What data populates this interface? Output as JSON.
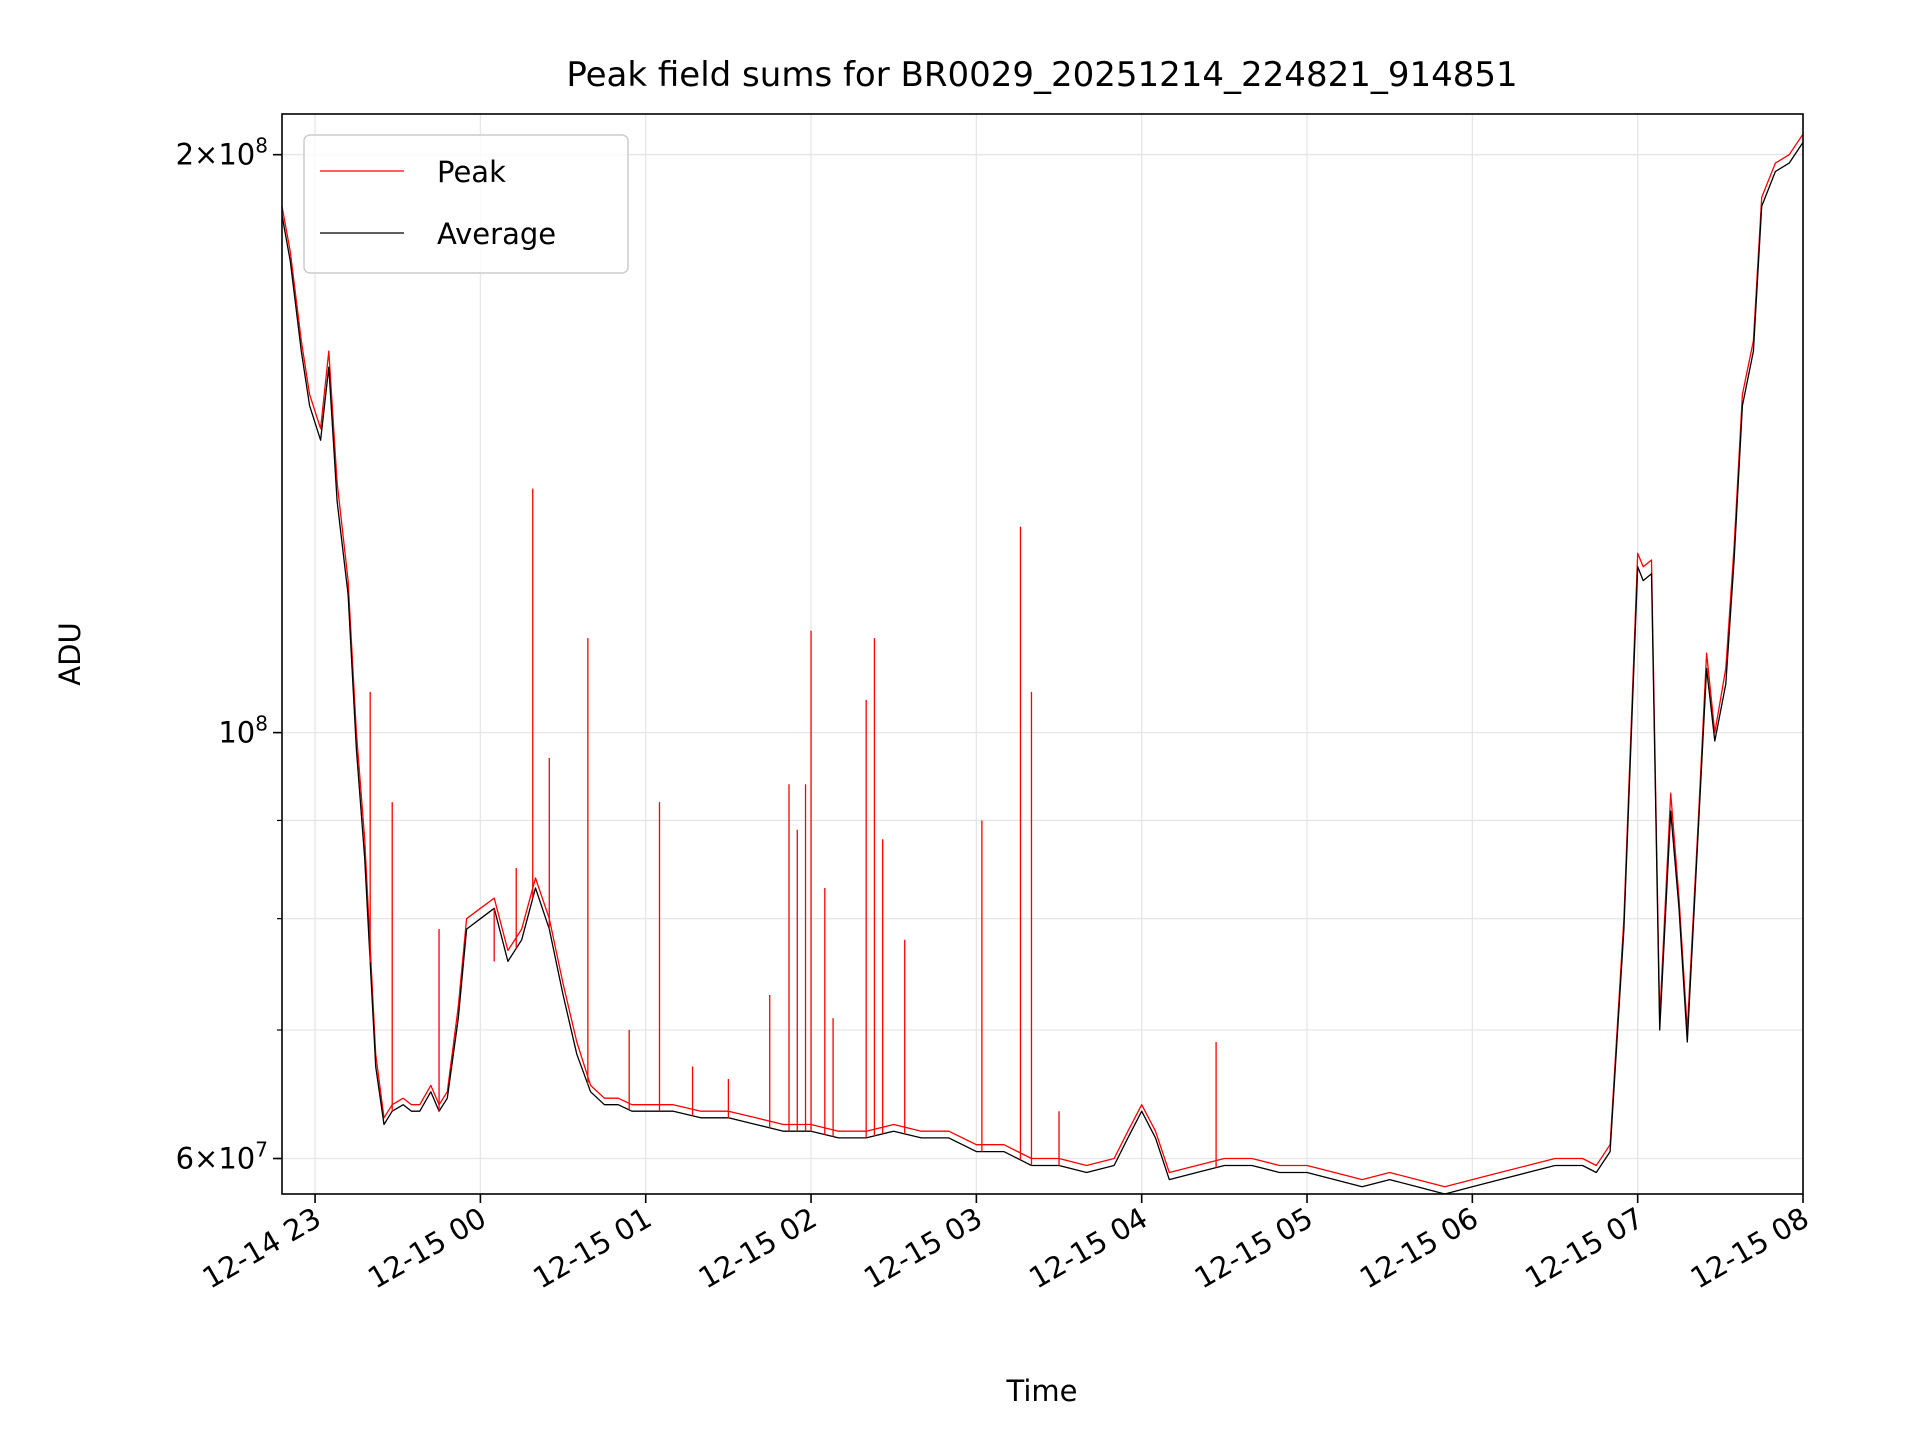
{
  "chart_data": {
    "type": "line",
    "title": "Peak field sums for BR0029_20251214_224821_914851",
    "xlabel": "Time",
    "ylabel": "ADU",
    "yscale": "log",
    "ylim": [
      57500000,
      210000000
    ],
    "xlim": [
      "2025-12-14 22:48",
      "2025-12-15 08:00"
    ],
    "y_major_ticks": [
      {
        "value": 60000000,
        "mantissa": "6",
        "exponent": "7"
      },
      {
        "value": 100000000,
        "mantissa": "",
        "exponent": "8"
      },
      {
        "value": 200000000,
        "mantissa": "2",
        "exponent": "8"
      }
    ],
    "y_minor_ticks": [
      60000000,
      70000000,
      80000000,
      90000000,
      100000000,
      200000000
    ],
    "x_ticks": [
      {
        "time": "2025-12-14 23:00",
        "label": "12-14 23"
      },
      {
        "time": "2025-12-15 00:00",
        "label": "12-15 00"
      },
      {
        "time": "2025-12-15 01:00",
        "label": "12-15 01"
      },
      {
        "time": "2025-12-15 02:00",
        "label": "12-15 02"
      },
      {
        "time": "2025-12-15 03:00",
        "label": "12-15 03"
      },
      {
        "time": "2025-12-15 04:00",
        "label": "12-15 04"
      },
      {
        "time": "2025-12-15 05:00",
        "label": "12-15 05"
      },
      {
        "time": "2025-12-15 06:00",
        "label": "12-15 06"
      },
      {
        "time": "2025-12-15 07:00",
        "label": "12-15 07"
      },
      {
        "time": "2025-12-15 08:00",
        "label": "12-15 08"
      }
    ],
    "grid": true,
    "legend": {
      "placement": "upper-left"
    },
    "series": [
      {
        "name": "Peak",
        "color": "#ff0000",
        "x": [
          "2025-12-14 22:48",
          "2025-12-14 22:51",
          "2025-12-14 22:55",
          "2025-12-14 22:58",
          "2025-12-14 23:02",
          "2025-12-14 23:05",
          "2025-12-14 23:08",
          "2025-12-14 23:12",
          "2025-12-14 23:15",
          "2025-12-14 23:18",
          "2025-12-14 23:22",
          "2025-12-14 23:25",
          "2025-12-14 23:28",
          "2025-12-14 23:32",
          "2025-12-14 23:35",
          "2025-12-14 23:38",
          "2025-12-14 23:42",
          "2025-12-14 23:45",
          "2025-12-14 23:48",
          "2025-12-14 23:52",
          "2025-12-14 23:55",
          "2025-12-15 00:00",
          "2025-12-15 00:05",
          "2025-12-15 00:10",
          "2025-12-15 00:15",
          "2025-12-15 00:20",
          "2025-12-15 00:25",
          "2025-12-15 00:30",
          "2025-12-15 00:35",
          "2025-12-15 00:40",
          "2025-12-15 00:45",
          "2025-12-15 00:50",
          "2025-12-15 00:55",
          "2025-12-15 01:00",
          "2025-12-15 01:10",
          "2025-12-15 01:20",
          "2025-12-15 01:30",
          "2025-12-15 01:40",
          "2025-12-15 01:50",
          "2025-12-15 02:00",
          "2025-12-15 02:10",
          "2025-12-15 02:20",
          "2025-12-15 02:30",
          "2025-12-15 02:40",
          "2025-12-15 02:50",
          "2025-12-15 03:00",
          "2025-12-15 03:10",
          "2025-12-15 03:20",
          "2025-12-15 03:30",
          "2025-12-15 03:40",
          "2025-12-15 03:50",
          "2025-12-15 03:55",
          "2025-12-15 04:00",
          "2025-12-15 04:05",
          "2025-12-15 04:10",
          "2025-12-15 04:20",
          "2025-12-15 04:30",
          "2025-12-15 04:40",
          "2025-12-15 04:50",
          "2025-12-15 05:00",
          "2025-12-15 05:10",
          "2025-12-15 05:20",
          "2025-12-15 05:30",
          "2025-12-15 05:40",
          "2025-12-15 05:50",
          "2025-12-15 06:00",
          "2025-12-15 06:10",
          "2025-12-15 06:20",
          "2025-12-15 06:30",
          "2025-12-15 06:40",
          "2025-12-15 06:45",
          "2025-12-15 06:50",
          "2025-12-15 06:55",
          "2025-12-15 07:00",
          "2025-12-15 07:02",
          "2025-12-15 07:05",
          "2025-12-15 07:08",
          "2025-12-15 07:12",
          "2025-12-15 07:15",
          "2025-12-15 07:18",
          "2025-12-15 07:22",
          "2025-12-15 07:25",
          "2025-12-15 07:28",
          "2025-12-15 07:32",
          "2025-12-15 07:35",
          "2025-12-15 07:38",
          "2025-12-15 07:42",
          "2025-12-15 07:45",
          "2025-12-15 07:50",
          "2025-12-15 07:55",
          "2025-12-15 08:00"
        ],
        "y": [
          188000000,
          178000000,
          160000000,
          150000000,
          144000000,
          158000000,
          135000000,
          120000000,
          100000000,
          88000000,
          68000000,
          63000000,
          64000000,
          64500000,
          64000000,
          64000000,
          65500000,
          64000000,
          65000000,
          72000000,
          80000000,
          81000000,
          82000000,
          77000000,
          79000000,
          84000000,
          80000000,
          74000000,
          69000000,
          65500000,
          64500000,
          64500000,
          64000000,
          64000000,
          64000000,
          63500000,
          63500000,
          63000000,
          62500000,
          62500000,
          62000000,
          62000000,
          62500000,
          62000000,
          62000000,
          61000000,
          61000000,
          60000000,
          60000000,
          59500000,
          60000000,
          62000000,
          64000000,
          62000000,
          59000000,
          59500000,
          60000000,
          60000000,
          59500000,
          59500000,
          59000000,
          58500000,
          59000000,
          58500000,
          58000000,
          58500000,
          59000000,
          59500000,
          60000000,
          60000000,
          59500000,
          61000000,
          80000000,
          124000000,
          122000000,
          123000000,
          71000000,
          93000000,
          82000000,
          70000000,
          90000000,
          110000000,
          100000000,
          108000000,
          125000000,
          150000000,
          160000000,
          190000000,
          198000000,
          200000000,
          205000000
        ]
      },
      {
        "name": "Average",
        "color": "#000000",
        "x": [
          "2025-12-14 22:48",
          "2025-12-14 22:51",
          "2025-12-14 22:55",
          "2025-12-14 22:58",
          "2025-12-14 23:02",
          "2025-12-14 23:05",
          "2025-12-14 23:08",
          "2025-12-14 23:12",
          "2025-12-14 23:15",
          "2025-12-14 23:18",
          "2025-12-14 23:22",
          "2025-12-14 23:25",
          "2025-12-14 23:28",
          "2025-12-14 23:32",
          "2025-12-14 23:35",
          "2025-12-14 23:38",
          "2025-12-14 23:42",
          "2025-12-14 23:45",
          "2025-12-14 23:48",
          "2025-12-14 23:52",
          "2025-12-14 23:55",
          "2025-12-15 00:00",
          "2025-12-15 00:05",
          "2025-12-15 00:10",
          "2025-12-15 00:15",
          "2025-12-15 00:20",
          "2025-12-15 00:25",
          "2025-12-15 00:30",
          "2025-12-15 00:35",
          "2025-12-15 00:40",
          "2025-12-15 00:45",
          "2025-12-15 00:50",
          "2025-12-15 00:55",
          "2025-12-15 01:00",
          "2025-12-15 01:10",
          "2025-12-15 01:20",
          "2025-12-15 01:30",
          "2025-12-15 01:40",
          "2025-12-15 01:50",
          "2025-12-15 02:00",
          "2025-12-15 02:10",
          "2025-12-15 02:20",
          "2025-12-15 02:30",
          "2025-12-15 02:40",
          "2025-12-15 02:50",
          "2025-12-15 03:00",
          "2025-12-15 03:10",
          "2025-12-15 03:20",
          "2025-12-15 03:30",
          "2025-12-15 03:40",
          "2025-12-15 03:50",
          "2025-12-15 03:55",
          "2025-12-15 04:00",
          "2025-12-15 04:05",
          "2025-12-15 04:10",
          "2025-12-15 04:20",
          "2025-12-15 04:30",
          "2025-12-15 04:40",
          "2025-12-15 04:50",
          "2025-12-15 05:00",
          "2025-12-15 05:10",
          "2025-12-15 05:20",
          "2025-12-15 05:30",
          "2025-12-15 05:40",
          "2025-12-15 05:50",
          "2025-12-15 06:00",
          "2025-12-15 06:10",
          "2025-12-15 06:20",
          "2025-12-15 06:30",
          "2025-12-15 06:40",
          "2025-12-15 06:45",
          "2025-12-15 06:50",
          "2025-12-15 06:55",
          "2025-12-15 07:00",
          "2025-12-15 07:02",
          "2025-12-15 07:05",
          "2025-12-15 07:08",
          "2025-12-15 07:12",
          "2025-12-15 07:15",
          "2025-12-15 07:18",
          "2025-12-15 07:22",
          "2025-12-15 07:25",
          "2025-12-15 07:28",
          "2025-12-15 07:32",
          "2025-12-15 07:35",
          "2025-12-15 07:38",
          "2025-12-15 07:42",
          "2025-12-15 07:45",
          "2025-12-15 07:50",
          "2025-12-15 07:55",
          "2025-12-15 08:00"
        ],
        "y": [
          186000000,
          176000000,
          158000000,
          148000000,
          142000000,
          155000000,
          132000000,
          118000000,
          98000000,
          86000000,
          67000000,
          62500000,
          63500000,
          64000000,
          63500000,
          63500000,
          65000000,
          63500000,
          64500000,
          71000000,
          79000000,
          80000000,
          81000000,
          76000000,
          78000000,
          83000000,
          79000000,
          73000000,
          68000000,
          65000000,
          64000000,
          64000000,
          63500000,
          63500000,
          63500000,
          63000000,
          63000000,
          62500000,
          62000000,
          62000000,
          61500000,
          61500000,
          62000000,
          61500000,
          61500000,
          60500000,
          60500000,
          59500000,
          59500000,
          59000000,
          59500000,
          61500000,
          63500000,
          61500000,
          58500000,
          59000000,
          59500000,
          59500000,
          59000000,
          59000000,
          58500000,
          58000000,
          58500000,
          58000000,
          57500000,
          58000000,
          58500000,
          59000000,
          59500000,
          59500000,
          59000000,
          60500000,
          79000000,
          122000000,
          120000000,
          121000000,
          70000000,
          91000000,
          81000000,
          69000000,
          89000000,
          108000000,
          99000000,
          106000000,
          123000000,
          148000000,
          158000000,
          188000000,
          196000000,
          198000000,
          203000000
        ]
      }
    ],
    "spikes": {
      "series": "Peak",
      "points": [
        {
          "x": "2025-12-14 23:20",
          "y": 105000000
        },
        {
          "x": "2025-12-14 23:28",
          "y": 92000000
        },
        {
          "x": "2025-12-14 23:45",
          "y": 79000000
        },
        {
          "x": "2025-12-15 00:05",
          "y": 76000000
        },
        {
          "x": "2025-12-15 00:13",
          "y": 85000000
        },
        {
          "x": "2025-12-15 00:19",
          "y": 134000000
        },
        {
          "x": "2025-12-15 00:25",
          "y": 97000000
        },
        {
          "x": "2025-12-15 00:39",
          "y": 112000000
        },
        {
          "x": "2025-12-15 00:54",
          "y": 70000000
        },
        {
          "x": "2025-12-15 01:05",
          "y": 92000000
        },
        {
          "x": "2025-12-15 01:17",
          "y": 67000000
        },
        {
          "x": "2025-12-15 01:30",
          "y": 66000000
        },
        {
          "x": "2025-12-15 01:45",
          "y": 73000000
        },
        {
          "x": "2025-12-15 01:52",
          "y": 94000000
        },
        {
          "x": "2025-12-15 01:55",
          "y": 89000000
        },
        {
          "x": "2025-12-15 01:58",
          "y": 94000000
        },
        {
          "x": "2025-12-15 02:00",
          "y": 113000000
        },
        {
          "x": "2025-12-15 02:05",
          "y": 83000000
        },
        {
          "x": "2025-12-15 02:08",
          "y": 71000000
        },
        {
          "x": "2025-12-15 02:20",
          "y": 104000000
        },
        {
          "x": "2025-12-15 02:23",
          "y": 112000000
        },
        {
          "x": "2025-12-15 02:26",
          "y": 88000000
        },
        {
          "x": "2025-12-15 02:34",
          "y": 78000000
        },
        {
          "x": "2025-12-15 03:02",
          "y": 90000000
        },
        {
          "x": "2025-12-15 03:16",
          "y": 128000000
        },
        {
          "x": "2025-12-15 03:20",
          "y": 105000000
        },
        {
          "x": "2025-12-15 03:30",
          "y": 63500000
        },
        {
          "x": "2025-12-15 04:27",
          "y": 69000000
        }
      ]
    }
  }
}
